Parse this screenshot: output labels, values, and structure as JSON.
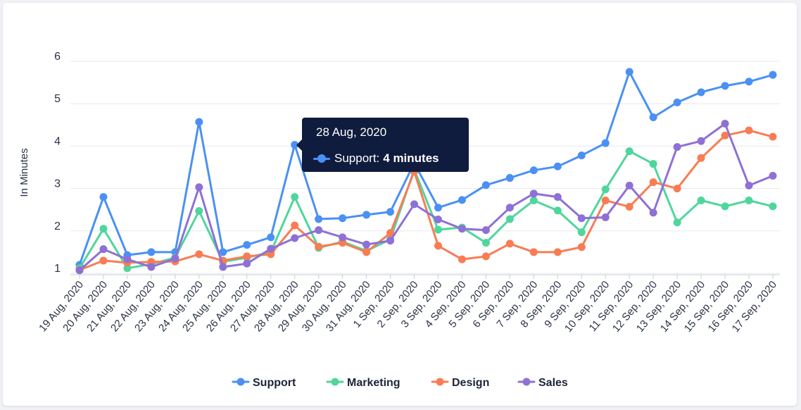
{
  "chart_data": {
    "type": "line",
    "title": "",
    "xlabel": "",
    "ylabel": "In Minutes",
    "ylim": [
      1,
      6
    ],
    "yticks": [
      1,
      2,
      3,
      4,
      5,
      6
    ],
    "grid": true,
    "legend": "bottom-center",
    "categories": [
      "19 Aug, 2020",
      "20 Aug, 2020",
      "21 Aug, 2020",
      "22 Aug, 2020",
      "23 Aug, 2020",
      "24 Aug, 2020",
      "25 Aug, 2020",
      "26 Aug, 2020",
      "27 Aug, 2020",
      "28 Aug, 2020",
      "29 Aug, 2020",
      "30 Aug, 2020",
      "31 Aug, 2020",
      "1 Sep, 2020",
      "2 Sep, 2020",
      "3 Sep, 2020",
      "4 Sep, 2020",
      "5 Sep, 2020",
      "6 Sep, 2020",
      "7 Sep, 2020",
      "8 Sep, 2020",
      "9 Sep, 2020",
      "10 Sep, 2020",
      "11 Sep, 2020",
      "12 Sep, 2020",
      "13 Sep, 2020",
      "14 Sep, 2020",
      "15 Sep, 2020",
      "16 Sep, 2020",
      "17 Sep, 2020"
    ],
    "series": [
      {
        "name": "Support",
        "color": "#4a90f5",
        "values": [
          1.2,
          2.8,
          1.43,
          1.5,
          1.5,
          4.57,
          1.5,
          1.67,
          1.85,
          4.03,
          2.28,
          2.3,
          2.38,
          2.45,
          3.6,
          2.55,
          2.73,
          3.08,
          3.25,
          3.43,
          3.52,
          3.78,
          4.07,
          5.75,
          4.68,
          5.03,
          5.27,
          5.42,
          5.52,
          5.68
        ]
      },
      {
        "name": "Marketing",
        "color": "#4fd69c",
        "values": [
          1.12,
          2.05,
          1.12,
          1.22,
          1.37,
          2.47,
          1.27,
          1.37,
          1.5,
          2.8,
          1.6,
          1.75,
          1.53,
          1.8,
          3.45,
          2.03,
          2.08,
          1.72,
          2.28,
          2.72,
          2.48,
          1.97,
          2.98,
          3.88,
          3.58,
          2.2,
          2.72,
          2.58,
          2.72,
          2.58
        ]
      },
      {
        "name": "Design",
        "color": "#f97c53",
        "values": [
          1.08,
          1.3,
          1.25,
          1.27,
          1.28,
          1.45,
          1.3,
          1.4,
          1.45,
          2.13,
          1.63,
          1.72,
          1.5,
          1.95,
          3.4,
          1.65,
          1.33,
          1.4,
          1.7,
          1.5,
          1.5,
          1.62,
          2.72,
          2.57,
          3.15,
          3.0,
          3.72,
          4.25,
          4.37,
          4.22
        ]
      },
      {
        "name": "Sales",
        "color": "#8e70d6",
        "values": [
          1.07,
          1.57,
          1.33,
          1.15,
          1.35,
          3.03,
          1.15,
          1.23,
          1.58,
          1.83,
          2.02,
          1.85,
          1.68,
          1.77,
          2.63,
          2.27,
          2.05,
          2.02,
          2.55,
          2.88,
          2.8,
          2.3,
          2.32,
          3.07,
          2.43,
          3.98,
          4.12,
          4.53,
          3.07,
          3.3
        ]
      }
    ]
  },
  "tooltip": {
    "title": "28 Aug, 2020",
    "series_label": "Support:",
    "value_text": "4 minutes"
  }
}
